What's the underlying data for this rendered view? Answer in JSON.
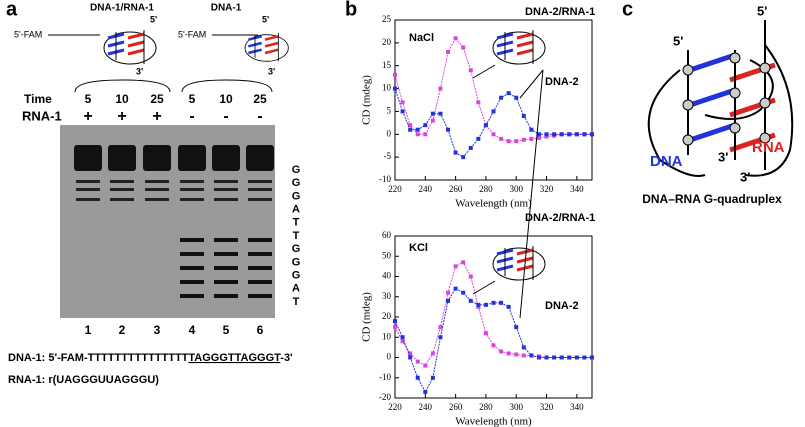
{
  "panels": {
    "a": {
      "letter": "a",
      "group_left": "DNA-1/RNA-1",
      "group_right": "DNA-1",
      "fam_left": "5'-FAM",
      "fam_right": "5'-FAM",
      "five_left": "5'",
      "three_left": "3'",
      "five_right": "5'",
      "three_right": "3'",
      "time_label": "Time",
      "times": [
        "5",
        "10",
        "25",
        "5",
        "10",
        "25"
      ],
      "rna_label": "RNA-1",
      "rna_signs": [
        "+",
        "+",
        "+",
        "-",
        "-",
        "-"
      ],
      "sequence_letters": [
        "G",
        "G",
        "G",
        "A",
        "T",
        "T",
        "G",
        "G",
        "G",
        "A",
        "T"
      ],
      "lanes": [
        "1",
        "2",
        "3",
        "4",
        "5",
        "6"
      ],
      "dna_line_prefix": "DNA-1:  5'-FAM-TTTTTTTTTTTTTTT",
      "dna_line_underlined": "TAGGGTTAGGGT",
      "dna_line_suffix": "-3'",
      "rna_line": "RNA-1: r(UAGGGUUAGGGU)"
    },
    "b": {
      "letter": "b"
    },
    "c": {
      "letter": "c",
      "five_left": "5'",
      "five_right": "5'",
      "three_mid": "3'",
      "three_low": "3'",
      "dna": "DNA",
      "rna": "RNA",
      "caption": "DNA–RNA G-quadruplex"
    }
  },
  "chart_data": [
    {
      "type": "line",
      "annotations": [
        "NaCl",
        "DNA-2/RNA-1",
        "DNA-2"
      ],
      "x_label": "Wavelength (nm)",
      "y_label": "CD (mdeg)",
      "x": [
        220,
        225,
        230,
        235,
        240,
        245,
        250,
        255,
        260,
        265,
        270,
        275,
        280,
        285,
        290,
        295,
        300,
        305,
        310,
        315,
        320,
        325,
        330,
        335,
        340,
        345,
        350
      ],
      "xlim": [
        220,
        350
      ],
      "xticks": [
        220,
        240,
        260,
        280,
        300,
        320,
        340
      ],
      "ylim": [
        -10,
        25
      ],
      "yticks": [
        -10,
        -5,
        0,
        5,
        10,
        15,
        20,
        25
      ],
      "series": [
        {
          "name": "DNA-2/RNA-1",
          "color": "#dd44dd",
          "values": [
            13,
            7,
            2,
            0,
            0,
            3,
            10,
            18,
            21,
            19,
            14,
            7,
            2,
            0,
            -1,
            -1.5,
            -1.5,
            -1.2,
            -1,
            -0.8,
            -0.5,
            -0.3,
            0,
            0,
            0,
            0,
            0
          ]
        },
        {
          "name": "DNA-2",
          "color": "#2233dd",
          "values": [
            10,
            5,
            1,
            1,
            2,
            4.5,
            4.5,
            1,
            -4,
            -5,
            -3,
            -1,
            2,
            5,
            8,
            9,
            8,
            4,
            1,
            0,
            0,
            0,
            0,
            0,
            0,
            0,
            0
          ]
        }
      ]
    },
    {
      "type": "line",
      "annotations": [
        "KCl",
        "DNA-2/RNA-1",
        "DNA-2"
      ],
      "x_label": "Wavelength (nm)",
      "y_label": "CD (mdeg)",
      "x": [
        220,
        225,
        230,
        235,
        240,
        245,
        250,
        255,
        260,
        265,
        270,
        275,
        280,
        285,
        290,
        295,
        300,
        305,
        310,
        315,
        320,
        325,
        330,
        335,
        340,
        345,
        350
      ],
      "xlim": [
        220,
        350
      ],
      "xticks": [
        220,
        240,
        260,
        280,
        300,
        320,
        340
      ],
      "ylim": [
        -20,
        60
      ],
      "yticks": [
        -20,
        -10,
        0,
        10,
        20,
        30,
        40,
        50,
        60
      ],
      "series": [
        {
          "name": "DNA-2/RNA-1",
          "color": "#dd44dd",
          "values": [
            15,
            8,
            2,
            -2,
            -4,
            2,
            15,
            32,
            45,
            47,
            40,
            25,
            12,
            6,
            3,
            2,
            1.5,
            1,
            1,
            0.5,
            0,
            0,
            0,
            0,
            0,
            0,
            0
          ]
        },
        {
          "name": "DNA-2",
          "color": "#2233dd",
          "values": [
            18,
            10,
            0,
            -10,
            -17,
            -10,
            10,
            28,
            34,
            32,
            28,
            26,
            26,
            27,
            27,
            25,
            15,
            5,
            1,
            0,
            0,
            0,
            0,
            0,
            0,
            0,
            0
          ]
        }
      ]
    }
  ]
}
